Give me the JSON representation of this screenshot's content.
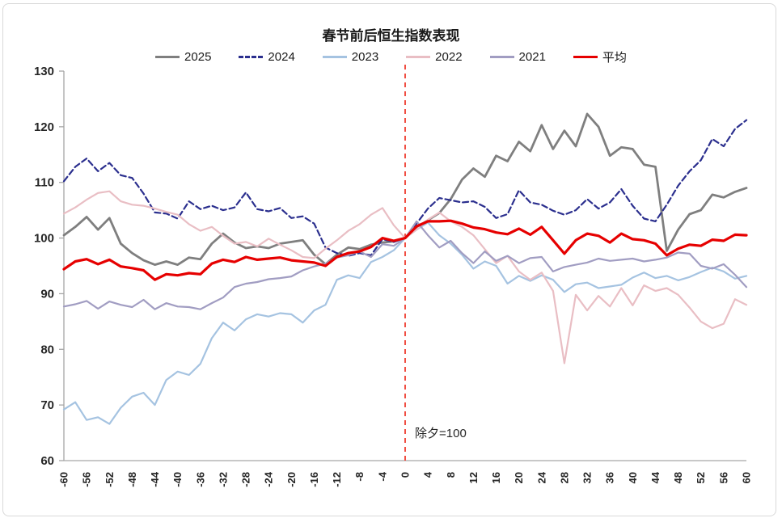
{
  "chart_data": {
    "type": "line",
    "title": "春节前后恒生指数表现",
    "xlabel": "",
    "ylabel": "",
    "x_range": [
      -60,
      60
    ],
    "y_range": [
      60,
      130
    ],
    "x_ticks": [
      -60,
      -56,
      -52,
      -48,
      -44,
      -40,
      -36,
      -32,
      -28,
      -24,
      -20,
      -16,
      -12,
      -8,
      -4,
      0,
      4,
      8,
      12,
      16,
      20,
      24,
      28,
      32,
      36,
      40,
      44,
      48,
      52,
      56,
      60
    ],
    "y_ticks": [
      60,
      70,
      80,
      90,
      100,
      110,
      120,
      130
    ],
    "grid": false,
    "legend_position": "top",
    "axis_color": "#a6a6a6",
    "x": [
      -60,
      -58,
      -56,
      -54,
      -52,
      -50,
      -48,
      -46,
      -44,
      -42,
      -40,
      -38,
      -36,
      -34,
      -32,
      -30,
      -28,
      -26,
      -24,
      -22,
      -20,
      -18,
      -16,
      -14,
      -12,
      -10,
      -8,
      -6,
      -4,
      -2,
      0,
      2,
      4,
      6,
      8,
      10,
      12,
      14,
      16,
      18,
      20,
      22,
      24,
      26,
      28,
      30,
      32,
      34,
      36,
      38,
      40,
      42,
      44,
      46,
      48,
      50,
      52,
      54,
      56,
      58,
      60
    ],
    "series": [
      {
        "name": "2025",
        "color": "#7f7f7f",
        "dash": null,
        "width": 2.8,
        "values": [
          100.5,
          102.0,
          103.8,
          101.5,
          103.6,
          99.0,
          97.3,
          96.0,
          95.2,
          95.8,
          95.2,
          96.5,
          96.2,
          99.0,
          100.8,
          99.2,
          98.2,
          98.5,
          98.2,
          99.0,
          99.3,
          99.6,
          97.0,
          95.3,
          97.0,
          98.3,
          98.0,
          98.8,
          99.2,
          99.4,
          100.0,
          101.8,
          103.2,
          104.5,
          107.0,
          110.5,
          112.5,
          111.0,
          114.8,
          113.8,
          117.3,
          115.6,
          120.3,
          116.0,
          119.3,
          116.5,
          122.3,
          120.0,
          114.8,
          116.3,
          116.0,
          113.2,
          112.8,
          97.7,
          101.5,
          104.3,
          105.0,
          107.8,
          107.3,
          108.3,
          109.0
        ]
      },
      {
        "name": "2024",
        "color": "#2b2f8e",
        "dash": "7 4",
        "width": 2.2,
        "values": [
          110.2,
          112.8,
          114.3,
          112.0,
          113.5,
          111.3,
          110.8,
          108.0,
          104.6,
          104.4,
          103.5,
          106.6,
          105.2,
          105.8,
          105.0,
          105.5,
          108.2,
          105.2,
          104.8,
          105.4,
          103.6,
          103.9,
          102.6,
          98.3,
          97.3,
          96.8,
          97.3,
          96.9,
          99.8,
          99.3,
          100.0,
          102.6,
          105.3,
          107.2,
          106.8,
          106.4,
          106.6,
          105.6,
          103.6,
          104.3,
          108.6,
          106.4,
          106.0,
          104.9,
          104.2,
          105.0,
          107.0,
          105.3,
          106.4,
          108.8,
          105.8,
          103.5,
          103.0,
          106.0,
          109.4,
          112.0,
          114.0,
          117.8,
          116.5,
          119.6,
          121.2
        ]
      },
      {
        "name": "2023",
        "color": "#a5c3e1",
        "dash": null,
        "width": 2.2,
        "values": [
          69.2,
          70.5,
          67.3,
          67.8,
          66.6,
          69.5,
          71.5,
          72.2,
          70.0,
          74.5,
          76.0,
          75.4,
          77.4,
          82.0,
          84.8,
          83.4,
          85.4,
          86.3,
          85.9,
          86.5,
          86.3,
          84.8,
          87.0,
          88.0,
          92.5,
          93.3,
          92.8,
          95.7,
          96.6,
          97.8,
          100.0,
          101.5,
          102.8,
          100.5,
          99.0,
          97.0,
          94.5,
          95.8,
          95.0,
          91.8,
          93.2,
          92.3,
          93.3,
          92.5,
          90.3,
          91.7,
          92.0,
          91.0,
          91.3,
          91.6,
          92.9,
          93.8,
          92.8,
          93.2,
          92.4,
          93.0,
          93.9,
          94.7,
          94.0,
          92.7,
          93.2
        ]
      },
      {
        "name": "2022",
        "color": "#e9bec4",
        "dash": null,
        "width": 2.2,
        "values": [
          104.4,
          105.5,
          106.9,
          108.1,
          108.4,
          106.6,
          106.0,
          105.8,
          105.3,
          104.7,
          104.2,
          102.5,
          101.3,
          102.0,
          100.4,
          99.0,
          99.3,
          98.5,
          99.9,
          98.8,
          97.8,
          96.6,
          96.4,
          98.1,
          99.6,
          101.3,
          102.5,
          104.2,
          105.4,
          102.3,
          100.0,
          101.5,
          103.3,
          104.6,
          103.0,
          102.0,
          100.5,
          98.0,
          95.5,
          96.8,
          94.0,
          92.5,
          93.8,
          90.5,
          77.5,
          89.8,
          87.0,
          89.6,
          87.7,
          91.0,
          87.9,
          91.5,
          90.5,
          91.0,
          89.8,
          87.5,
          85.0,
          83.8,
          84.6,
          89.0,
          88.0
        ]
      },
      {
        "name": "2021",
        "color": "#a19dc2",
        "dash": null,
        "width": 2.2,
        "values": [
          87.7,
          88.1,
          88.7,
          87.3,
          88.6,
          88.0,
          87.6,
          88.9,
          87.2,
          88.3,
          87.7,
          87.6,
          87.2,
          88.3,
          89.3,
          91.2,
          91.8,
          92.1,
          92.6,
          92.8,
          93.1,
          94.2,
          94.9,
          95.4,
          96.5,
          96.9,
          97.6,
          96.6,
          98.9,
          98.6,
          100.0,
          103.0,
          100.5,
          98.3,
          99.5,
          97.3,
          95.5,
          97.6,
          95.9,
          96.8,
          95.5,
          96.4,
          96.6,
          94.0,
          94.8,
          95.2,
          95.6,
          96.3,
          95.9,
          96.1,
          96.3,
          95.8,
          96.1,
          96.5,
          97.4,
          97.2,
          95.0,
          94.5,
          95.3,
          93.4,
          91.2
        ]
      },
      {
        "name": "平均",
        "color": "#e60000",
        "dash": null,
        "width": 3.2,
        "values": [
          94.4,
          95.8,
          96.2,
          95.3,
          96.1,
          94.9,
          94.6,
          94.2,
          92.5,
          93.5,
          93.3,
          93.7,
          93.5,
          95.4,
          96.1,
          95.7,
          96.6,
          96.1,
          96.3,
          96.5,
          96.0,
          95.8,
          95.6,
          95.0,
          96.6,
          97.3,
          97.6,
          98.4,
          100.0,
          99.5,
          100.0,
          102.1,
          103.0,
          103.0,
          103.1,
          102.6,
          101.9,
          101.6,
          101.0,
          100.7,
          101.7,
          100.6,
          102.0,
          99.6,
          97.2,
          99.6,
          100.8,
          100.4,
          99.2,
          100.8,
          99.8,
          99.6,
          99.0,
          96.9,
          98.1,
          98.8,
          98.6,
          99.7,
          99.5,
          100.6,
          100.5
        ]
      }
    ],
    "ref_line": {
      "x": 0,
      "color": "#f04e42",
      "label": "除夕=100"
    }
  }
}
